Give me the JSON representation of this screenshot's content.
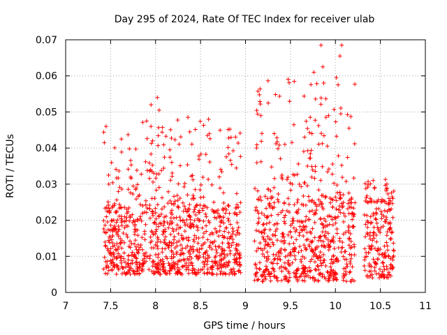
{
  "chart_data": {
    "type": "scatter",
    "title": "Day 295 of 2024, Rate Of TEC Index for receiver ulab",
    "xlabel": "GPS time / hours",
    "ylabel": "ROTI / TECUs",
    "xlim": [
      7,
      11
    ],
    "ylim": [
      0,
      0.07
    ],
    "xticks": [
      "7",
      "7.5",
      "8",
      "8.5",
      "9",
      "9.5",
      "10",
      "10.5",
      "11"
    ],
    "yticks": [
      "0",
      "0.01",
      "0.02",
      "0.03",
      "0.04",
      "0.05",
      "0.06",
      "0.07"
    ],
    "grid": true,
    "marker": "+",
    "marker_color": "#ff0000",
    "series": [
      {
        "name": "ROTI",
        "segments": [
          {
            "x_start": 7.42,
            "x_end": 8.95,
            "base_min": 0.005,
            "base_max": 0.024,
            "upper_max": 0.054
          },
          {
            "x_start": 9.1,
            "x_end": 10.22,
            "base_min": 0.003,
            "base_max": 0.026,
            "upper_max": 0.069
          },
          {
            "x_start": 10.32,
            "x_end": 10.65,
            "base_min": 0.004,
            "base_max": 0.025,
            "upper_max": 0.033
          }
        ],
        "peaks": [
          {
            "x": 7.45,
            "y": 0.046
          },
          {
            "x": 7.43,
            "y": 0.0415
          },
          {
            "x": 7.62,
            "y": 0.0425
          },
          {
            "x": 7.9,
            "y": 0.0475
          },
          {
            "x": 7.95,
            "y": 0.052
          },
          {
            "x": 8.02,
            "y": 0.054
          },
          {
            "x": 8.04,
            "y": 0.0505
          },
          {
            "x": 8.36,
            "y": 0.0485
          },
          {
            "x": 8.38,
            "y": 0.0445
          },
          {
            "x": 9.17,
            "y": 0.049
          },
          {
            "x": 9.32,
            "y": 0.044
          },
          {
            "x": 9.72,
            "y": 0.0485
          },
          {
            "x": 9.76,
            "y": 0.061
          },
          {
            "x": 9.84,
            "y": 0.0685
          },
          {
            "x": 9.86,
            "y": 0.0625
          },
          {
            "x": 9.87,
            "y": 0.058
          },
          {
            "x": 10.01,
            "y": 0.0595
          },
          {
            "x": 10.03,
            "y": 0.0575
          },
          {
            "x": 10.05,
            "y": 0.0655
          },
          {
            "x": 10.07,
            "y": 0.0685
          },
          {
            "x": 10.06,
            "y": 0.0495
          },
          {
            "x": 10.42,
            "y": 0.031
          }
        ]
      }
    ]
  }
}
